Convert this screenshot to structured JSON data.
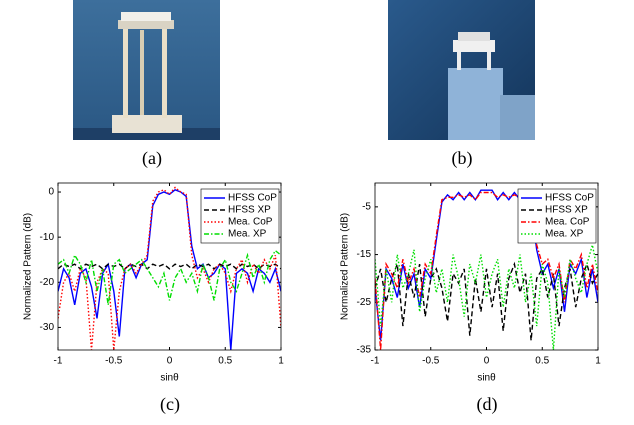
{
  "captions": [
    "(a)",
    "(b)",
    "(c)",
    "(d)"
  ],
  "chart_data": [
    {
      "type": "line",
      "xlabel": "sinθ",
      "ylabel": "Normalized Pattern (dB)",
      "xlim": [
        -1,
        1
      ],
      "ylim": [
        -35,
        2
      ],
      "xticks": [
        -1,
        -0.5,
        0,
        0.5,
        1
      ],
      "yticks": [
        -30,
        -20,
        -10,
        0
      ],
      "legend": "upper right",
      "x": [
        -1,
        -0.95,
        -0.9,
        -0.85,
        -0.8,
        -0.75,
        -0.7,
        -0.65,
        -0.6,
        -0.55,
        -0.5,
        -0.45,
        -0.4,
        -0.35,
        -0.3,
        -0.25,
        -0.2,
        -0.15,
        -0.1,
        -0.05,
        0,
        0.05,
        0.1,
        0.15,
        0.2,
        0.25,
        0.3,
        0.35,
        0.4,
        0.45,
        0.5,
        0.55,
        0.6,
        0.65,
        0.7,
        0.75,
        0.8,
        0.85,
        0.9,
        0.95,
        1
      ],
      "series": [
        {
          "name": "HFSS CoP",
          "color": "#0000ff",
          "dash": "solid",
          "values": [
            -22,
            -17,
            -19,
            -25,
            -18,
            -17,
            -21,
            -28,
            -18,
            -16,
            -22,
            -32,
            -17,
            -16,
            -19,
            -16,
            -15,
            -3,
            -0.5,
            0,
            -0.5,
            0.5,
            0,
            -1,
            -12,
            -17,
            -16,
            -19,
            -18,
            -16,
            -17,
            -35,
            -18,
            -17,
            -18,
            -22,
            -17,
            -18,
            -20,
            -17,
            -22
          ]
        },
        {
          "name": "HFSS XP",
          "color": "#000000",
          "dash": "dashed",
          "values": [
            -17,
            -16,
            -16.5,
            -16,
            -17,
            -16,
            -16.5,
            -16,
            -17,
            -16,
            -16.5,
            -16,
            -17,
            -16,
            -16.5,
            -16,
            -17,
            -16,
            -16.5,
            -16,
            -17,
            -16,
            -16.5,
            -16,
            -17,
            -16,
            -16.5,
            -16,
            -17,
            -16,
            -16.5,
            -16,
            -17,
            -16,
            -16.5,
            -16,
            -17,
            -16,
            -16.5,
            -16,
            -17
          ]
        },
        {
          "name": "Mea. CoP",
          "color": "#ff0000",
          "dash": "dotted",
          "values": [
            -28,
            -20,
            -18,
            -22,
            -17,
            -19,
            -35,
            -20,
            -17,
            -18,
            -35,
            -22,
            -17,
            -16,
            -18,
            -16,
            -14,
            -2,
            0,
            0.5,
            -0.5,
            1,
            0,
            -0.5,
            -14,
            -19,
            -17,
            -20,
            -17,
            -16,
            -18,
            -22,
            -17,
            -15,
            -20,
            -16,
            -18,
            -15,
            -17,
            -14,
            -30
          ]
        },
        {
          "name": "Mea. XP",
          "color": "#00dd00",
          "dash": "dashdot",
          "values": [
            -16,
            -15,
            -18,
            -14,
            -16,
            -20,
            -15,
            -22,
            -17,
            -25,
            -16,
            -15,
            -18,
            -17,
            -16,
            -15,
            -17,
            -19,
            -21,
            -18,
            -24,
            -19,
            -17,
            -20,
            -18,
            -22,
            -16,
            -19,
            -24,
            -17,
            -15,
            -20,
            -22,
            -18,
            -14,
            -19,
            -16,
            -20,
            -15,
            -13,
            -14
          ]
        }
      ]
    },
    {
      "type": "line",
      "xlabel": "sinθ",
      "ylabel": "Normalized Pattern (dB)",
      "xlim": [
        -1,
        1
      ],
      "ylim": [
        -35,
        0
      ],
      "xticks": [
        -1,
        -0.5,
        0,
        0.5,
        1
      ],
      "yticks": [
        -35,
        -25,
        -15,
        -5
      ],
      "legend": "upper right",
      "x": [
        -1,
        -0.95,
        -0.9,
        -0.85,
        -0.8,
        -0.75,
        -0.7,
        -0.65,
        -0.6,
        -0.55,
        -0.5,
        -0.45,
        -0.4,
        -0.35,
        -0.3,
        -0.25,
        -0.2,
        -0.15,
        -0.1,
        -0.05,
        0,
        0.05,
        0.1,
        0.15,
        0.2,
        0.25,
        0.3,
        0.35,
        0.4,
        0.45,
        0.5,
        0.55,
        0.6,
        0.65,
        0.7,
        0.75,
        0.8,
        0.85,
        0.9,
        0.95,
        1
      ],
      "series": [
        {
          "name": "HFSS CoP",
          "color": "#0000ff",
          "dash": "solid",
          "values": [
            -22,
            -33,
            -18,
            -20,
            -24,
            -17,
            -22,
            -19,
            -26,
            -18,
            -20,
            -12,
            -4,
            -2.5,
            -3.5,
            -2,
            -3.5,
            -2,
            -3.5,
            -1.5,
            -1.5,
            -1.5,
            -3.5,
            -2,
            -3.5,
            -2,
            -3.5,
            -2.5,
            -5,
            -14,
            -19,
            -17,
            -22,
            -18,
            -27,
            -17,
            -19,
            -16,
            -24,
            -18,
            -25
          ]
        },
        {
          "name": "HFSS XP",
          "color": "#000000",
          "dash": "dashed",
          "values": [
            -22,
            -18,
            -25,
            -20,
            -17,
            -30,
            -19,
            -24,
            -17,
            -28,
            -20,
            -18,
            -22,
            -29,
            -19,
            -21,
            -18,
            -32,
            -20,
            -27,
            -18,
            -26,
            -19,
            -31,
            -20,
            -17,
            -23,
            -19,
            -33,
            -20,
            -18,
            -24,
            -19,
            -30,
            -22,
            -18,
            -26,
            -20,
            -17,
            -21,
            -19
          ]
        },
        {
          "name": "Mea. CoP",
          "color": "#ff0000",
          "dash": "dashdot",
          "values": [
            -20,
            -35,
            -17,
            -19,
            -22,
            -16,
            -21,
            -18,
            -24,
            -17,
            -19,
            -11,
            -3.5,
            -3,
            -3,
            -2.5,
            -3,
            -2.5,
            -3.5,
            -2,
            -2,
            -2,
            -3,
            -2.5,
            -3,
            -2.5,
            -3,
            -3,
            -4.5,
            -13,
            -17,
            -16,
            -20,
            -17,
            -25,
            -16,
            -18,
            -15,
            -22,
            -17,
            -23
          ]
        },
        {
          "name": "Mea. XP",
          "color": "#00dd00",
          "dash": "dotted",
          "values": [
            -16,
            -30,
            -18,
            -25,
            -15,
            -22,
            -19,
            -14,
            -27,
            -20,
            -16,
            -23,
            -18,
            -25,
            -15,
            -20,
            -28,
            -17,
            -21,
            -15,
            -24,
            -19,
            -16,
            -26,
            -18,
            -22,
            -15,
            -25,
            -19,
            -30,
            -17,
            -21,
            -35,
            -18,
            -24,
            -16,
            -20,
            -23,
            -17,
            -13,
            -19
          ]
        }
      ]
    }
  ]
}
